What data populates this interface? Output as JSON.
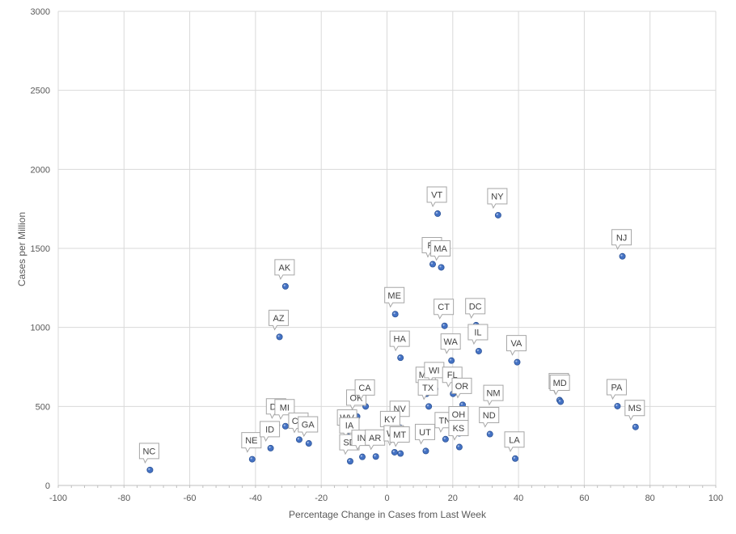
{
  "chart_data": {
    "type": "scatter",
    "title": "",
    "xlabel": "Percentage Change  in Cases from Last Week",
    "ylabel": "Cases per Million",
    "xlim": [
      -100,
      100
    ],
    "ylim": [
      0,
      3000
    ],
    "x_ticks": [
      -100,
      -80,
      -60,
      -40,
      -20,
      0,
      20,
      40,
      60,
      80,
      100
    ],
    "y_ticks": [
      0,
      500,
      1000,
      1500,
      2000,
      2500,
      3000
    ],
    "grid": true,
    "marker_color": "#4472c4",
    "points": [
      {
        "label": "NC",
        "x": -72.1,
        "y": 98
      },
      {
        "label": "NE",
        "x": -41.0,
        "y": 166
      },
      {
        "label": "ID",
        "x": -35.4,
        "y": 236
      },
      {
        "label": "DE",
        "x": -33.5,
        "y": 380
      },
      {
        "label": "MI",
        "x": -30.9,
        "y": 375
      },
      {
        "label": "AK",
        "x": -30.9,
        "y": 1260
      },
      {
        "label": "AZ",
        "x": -32.7,
        "y": 940
      },
      {
        "label": "CO",
        "x": -26.7,
        "y": 290
      },
      {
        "label": "GA",
        "x": -23.8,
        "y": 266
      },
      {
        "label": "WV",
        "x": -11.9,
        "y": 310
      },
      {
        "label": "IA",
        "x": -11.2,
        "y": 260
      },
      {
        "label": "SD",
        "x": -11.2,
        "y": 153
      },
      {
        "label": "IN",
        "x": -7.5,
        "y": 181
      },
      {
        "label": "OK",
        "x": -9.1,
        "y": 436
      },
      {
        "label": "CA",
        "x": -6.5,
        "y": 500
      },
      {
        "label": "AR",
        "x": -3.4,
        "y": 183
      },
      {
        "label": "ME",
        "x": 2.5,
        "y": 1084
      },
      {
        "label": "HA",
        "x": 4.1,
        "y": 808
      },
      {
        "label": "NV",
        "x": 4.1,
        "y": 365
      },
      {
        "label": "KY",
        "x": 1.2,
        "y": 300
      },
      {
        "label": "WY",
        "x": 2.3,
        "y": 210
      },
      {
        "label": "MT",
        "x": 4.1,
        "y": 202
      },
      {
        "label": "UT",
        "x": 11.8,
        "y": 218
      },
      {
        "label": "VT",
        "x": 15.4,
        "y": 1720
      },
      {
        "label": "RI",
        "x": 13.9,
        "y": 1400
      },
      {
        "label": "MA",
        "x": 16.5,
        "y": 1380
      },
      {
        "label": "MN",
        "x": 12.0,
        "y": 580
      },
      {
        "label": "WI",
        "x": 14.6,
        "y": 610
      },
      {
        "label": "TX",
        "x": 12.7,
        "y": 500
      },
      {
        "label": "CT",
        "x": 17.5,
        "y": 1010
      },
      {
        "label": "WA",
        "x": 19.6,
        "y": 790
      },
      {
        "label": "FL",
        "x": 20.1,
        "y": 580
      },
      {
        "label": "OR",
        "x": 23.0,
        "y": 510
      },
      {
        "label": "TN",
        "x": 17.8,
        "y": 293
      },
      {
        "label": "OH",
        "x": 22.0,
        "y": 330
      },
      {
        "label": "KS",
        "x": 22.0,
        "y": 243
      },
      {
        "label": "DC",
        "x": 27.1,
        "y": 1014
      },
      {
        "label": "IL",
        "x": 27.9,
        "y": 850
      },
      {
        "label": "NY",
        "x": 33.8,
        "y": 1710
      },
      {
        "label": "NM",
        "x": 32.6,
        "y": 465
      },
      {
        "label": "ND",
        "x": 31.3,
        "y": 325
      },
      {
        "label": "LA",
        "x": 39.0,
        "y": 170
      },
      {
        "label": "VA",
        "x": 39.6,
        "y": 780
      },
      {
        "label": "MO",
        "x": 52.5,
        "y": 540
      },
      {
        "label": "MD",
        "x": 52.8,
        "y": 530
      },
      {
        "label": "NJ",
        "x": 71.6,
        "y": 1450
      },
      {
        "label": "PA",
        "x": 70.1,
        "y": 502
      },
      {
        "label": "MS",
        "x": 75.6,
        "y": 370
      }
    ]
  }
}
